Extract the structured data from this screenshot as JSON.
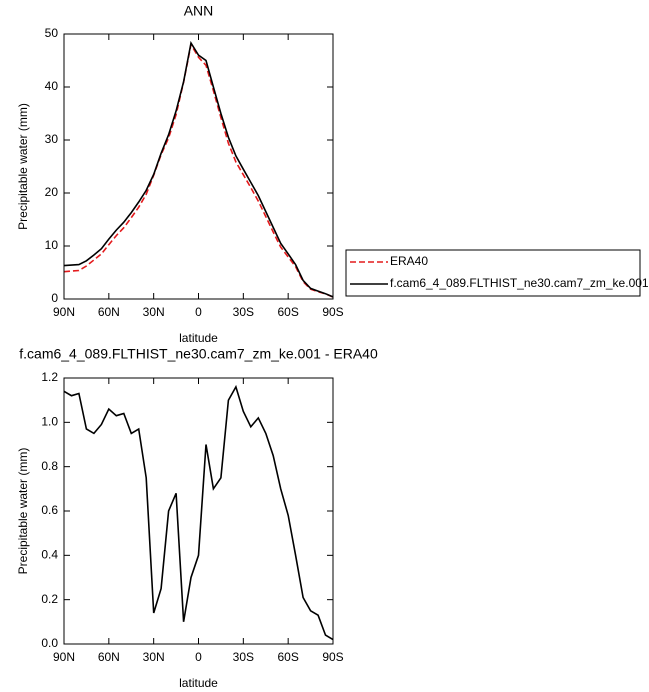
{
  "chart_data": [
    {
      "type": "line",
      "title": "ANN",
      "xlabel": "latitude",
      "ylabel": "Precipitable water (mm)",
      "x": [
        90,
        85,
        80,
        75,
        70,
        65,
        60,
        55,
        50,
        45,
        40,
        35,
        30,
        25,
        20,
        15,
        10,
        5,
        0,
        -5,
        -10,
        -15,
        -20,
        -25,
        -30,
        -35,
        -40,
        -45,
        -50,
        -55,
        -60,
        -65,
        -70,
        -75,
        -80,
        -85,
        -90
      ],
      "series": [
        {
          "name": "ERA40",
          "color": "#e41a1c",
          "line_style": "dashed",
          "values": [
            5.16,
            5.28,
            5.37,
            6.23,
            7.35,
            8.51,
            10.24,
            11.97,
            13.46,
            15.35,
            17.33,
            19.75,
            23.36,
            27.25,
            30.4,
            34.82,
            40.9,
            48.0,
            45.6,
            44.1,
            39.3,
            34.25,
            29.4,
            25.84,
            23.45,
            21.02,
            18.48,
            15.55,
            12.65,
            9.8,
            7.92,
            6.1,
            3.29,
            1.85,
            1.37,
            0.96,
            0.38
          ]
        },
        {
          "name": "f.cam6_4_089.FLTHIST_ne30.cam7_zm_ke.001",
          "color": "#000000",
          "line_style": "solid",
          "values": [
            6.3,
            6.4,
            6.5,
            7.2,
            8.3,
            9.5,
            11.3,
            13.0,
            14.5,
            16.3,
            18.3,
            20.5,
            23.5,
            27.5,
            31.0,
            35.5,
            41.0,
            48.3,
            46.0,
            45.0,
            40.0,
            35.0,
            30.5,
            27.0,
            24.5,
            22.0,
            19.5,
            16.5,
            13.5,
            10.5,
            8.5,
            6.5,
            3.5,
            2.0,
            1.5,
            1.0,
            0.4
          ]
        }
      ],
      "xlim": [
        90,
        -90
      ],
      "xticks": [
        {
          "value": 90,
          "label": "90N"
        },
        {
          "value": 60,
          "label": "60N"
        },
        {
          "value": 30,
          "label": "30N"
        },
        0,
        {
          "value": -30,
          "label": "30S"
        },
        {
          "value": -60,
          "label": "60S"
        },
        {
          "value": -90,
          "label": "90S"
        }
      ],
      "ylim": [
        0,
        50
      ],
      "yticks": [
        0,
        10,
        20,
        30,
        40,
        50
      ]
    },
    {
      "type": "line",
      "title": "f.cam6_4_089.FLTHIST_ne30.cam7_zm_ke.001 - ERA40",
      "xlabel": "latitude",
      "ylabel": "Precipitable water (mm)",
      "x": [
        90,
        85,
        80,
        75,
        70,
        65,
        60,
        55,
        50,
        45,
        40,
        35,
        30,
        25,
        20,
        15,
        10,
        5,
        0,
        -5,
        -10,
        -15,
        -20,
        -25,
        -30,
        -35,
        -40,
        -45,
        -50,
        -55,
        -60,
        -65,
        -70,
        -75,
        -80,
        -85,
        -90
      ],
      "values": [
        1.14,
        1.12,
        1.13,
        0.97,
        0.95,
        0.99,
        1.06,
        1.03,
        1.04,
        0.95,
        0.97,
        0.75,
        0.14,
        0.25,
        0.6,
        0.68,
        0.1,
        0.3,
        0.4,
        0.9,
        0.7,
        0.75,
        1.1,
        1.16,
        1.05,
        0.98,
        1.02,
        0.95,
        0.85,
        0.7,
        0.58,
        0.4,
        0.21,
        0.15,
        0.13,
        0.04,
        0.02
      ],
      "color": "#000000",
      "line_style": "solid",
      "xlim": [
        90,
        -90
      ],
      "xticks": [
        {
          "value": 90,
          "label": "90N"
        },
        {
          "value": 60,
          "label": "60N"
        },
        {
          "value": 30,
          "label": "30N"
        },
        0,
        {
          "value": -30,
          "label": "30S"
        },
        {
          "value": -60,
          "label": "60S"
        },
        {
          "value": -90,
          "label": "90S"
        }
      ],
      "ylim": [
        0,
        1.2
      ],
      "yticks": [
        {
          "value": 0,
          "label": "0.0"
        },
        0.2,
        0.4,
        0.6,
        0.8,
        {
          "value": 1,
          "label": "1.0"
        },
        1.2
      ]
    }
  ]
}
